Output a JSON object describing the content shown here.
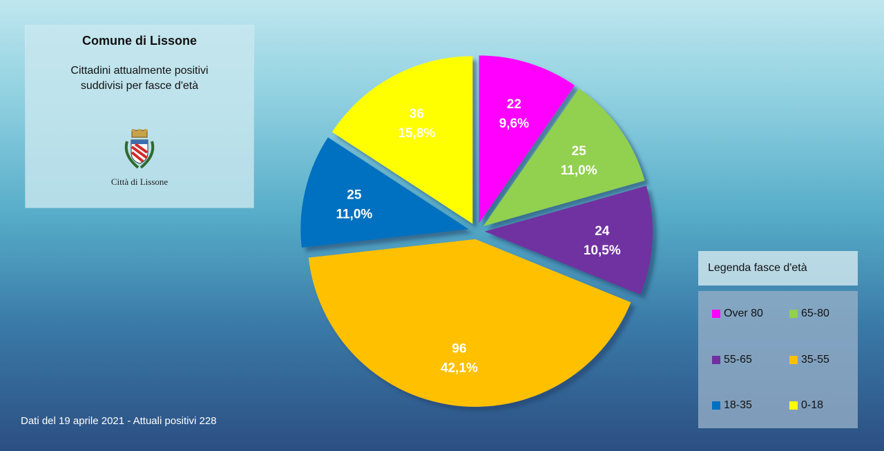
{
  "info": {
    "title": "Comune di Lissone",
    "subtitle_line1": "Cittadini attualmente positivi",
    "subtitle_line2": "suddivisi per fasce d'età",
    "logo_caption": "Città di Lissone"
  },
  "footer": "Dati del 19 aprile 2021 - Attuali positivi 228",
  "legend": {
    "title": "Legenda fasce d'età",
    "items": [
      {
        "label": "Over 80",
        "color": "#ff00ff"
      },
      {
        "label": "65-80",
        "color": "#92d050"
      },
      {
        "label": "55-65",
        "color": "#7030a0"
      },
      {
        "label": "35-55",
        "color": "#ffc000"
      },
      {
        "label": "18-35",
        "color": "#0070c0"
      },
      {
        "label": "0-18",
        "color": "#ffff00"
      }
    ]
  },
  "chart_data": {
    "type": "pie",
    "title": "",
    "slices": [
      {
        "category": "Over 80",
        "value": 22,
        "percent": "9,6%",
        "color": "#ff00ff"
      },
      {
        "category": "65-80",
        "value": 25,
        "percent": "11,0%",
        "color": "#92d050"
      },
      {
        "category": "55-65",
        "value": 24,
        "percent": "10,5%",
        "color": "#7030a0"
      },
      {
        "category": "35-55",
        "value": 96,
        "percent": "42,1%",
        "color": "#ffc000"
      },
      {
        "category": "18-35",
        "value": 25,
        "percent": "11,0%",
        "color": "#0070c0"
      },
      {
        "category": "0-18",
        "value": 36,
        "percent": "15,8%",
        "color": "#ffff00"
      }
    ],
    "total": 228,
    "exploded": true,
    "legend_position": "right"
  }
}
